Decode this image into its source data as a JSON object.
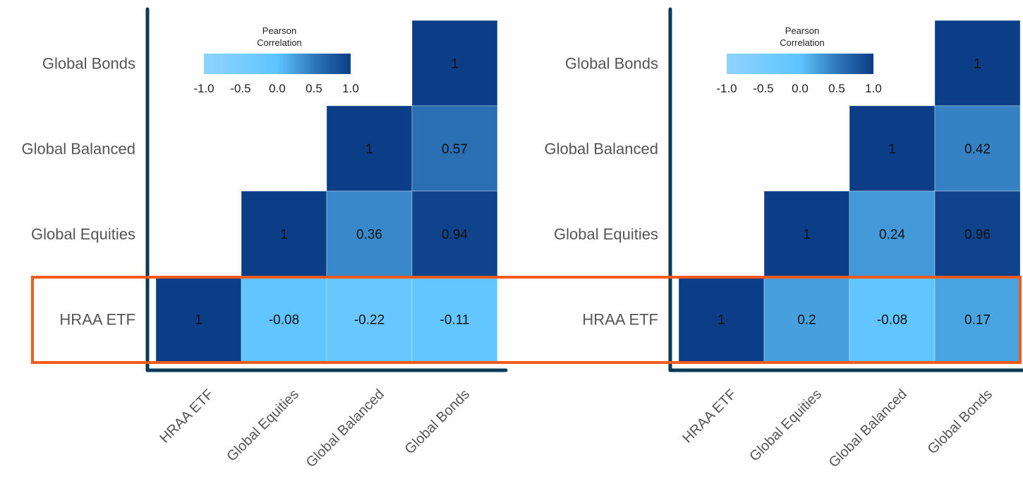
{
  "chart_data": [
    {
      "type": "heatmap",
      "title": "",
      "xlabel": "",
      "ylabel": "",
      "x_categories": [
        "HRAA ETF",
        "Global Equities",
        "Global Balanced",
        "Global Bonds"
      ],
      "y_categories": [
        "Global Bonds",
        "Global Balanced",
        "Global Equities",
        "HRAA ETF"
      ],
      "cells": [
        {
          "row": "Global Bonds",
          "col": "Global Bonds",
          "value": 1
        },
        {
          "row": "Global Balanced",
          "col": "Global Balanced",
          "value": 1
        },
        {
          "row": "Global Balanced",
          "col": "Global Bonds",
          "value": 0.57
        },
        {
          "row": "Global Equities",
          "col": "Global Equities",
          "value": 1
        },
        {
          "row": "Global Equities",
          "col": "Global Balanced",
          "value": 0.36
        },
        {
          "row": "Global Equities",
          "col": "Global Bonds",
          "value": 0.94
        },
        {
          "row": "HRAA ETF",
          "col": "HRAA ETF",
          "value": 1
        },
        {
          "row": "HRAA ETF",
          "col": "Global Equities",
          "value": -0.08
        },
        {
          "row": "HRAA ETF",
          "col": "Global Balanced",
          "value": -0.22
        },
        {
          "row": "HRAA ETF",
          "col": "Global Bonds",
          "value": -0.11
        }
      ],
      "colorbar": {
        "title_line1": "Pearson",
        "title_line2": "Correlation",
        "ticks": [
          "-1.0",
          "-0.5",
          "0.0",
          "0.5",
          "1.0"
        ],
        "range": [
          -1,
          1
        ]
      },
      "highlighted_row": "HRAA ETF",
      "grid": false
    },
    {
      "type": "heatmap",
      "title": "",
      "xlabel": "",
      "ylabel": "",
      "x_categories": [
        "HRAA ETF",
        "Global Equities",
        "Global Balanced",
        "Global Bonds"
      ],
      "y_categories": [
        "Global Bonds",
        "Global Balanced",
        "Global Equities",
        "HRAA ETF"
      ],
      "cells": [
        {
          "row": "Global Bonds",
          "col": "Global Bonds",
          "value": 1
        },
        {
          "row": "Global Balanced",
          "col": "Global Balanced",
          "value": 1
        },
        {
          "row": "Global Balanced",
          "col": "Global Bonds",
          "value": 0.42
        },
        {
          "row": "Global Equities",
          "col": "Global Equities",
          "value": 1
        },
        {
          "row": "Global Equities",
          "col": "Global Balanced",
          "value": 0.24
        },
        {
          "row": "Global Equities",
          "col": "Global Bonds",
          "value": 0.96
        },
        {
          "row": "HRAA ETF",
          "col": "HRAA ETF",
          "value": 1
        },
        {
          "row": "HRAA ETF",
          "col": "Global Equities",
          "value": 0.2
        },
        {
          "row": "HRAA ETF",
          "col": "Global Balanced",
          "value": -0.08
        },
        {
          "row": "HRAA ETF",
          "col": "Global Bonds",
          "value": 0.17
        }
      ],
      "colorbar": {
        "title_line1": "Pearson",
        "title_line2": "Correlation",
        "ticks": [
          "-1.0",
          "-0.5",
          "0.0",
          "0.5",
          "1.0"
        ],
        "range": [
          -1,
          1
        ]
      },
      "highlighted_row": "HRAA ETF",
      "grid": false
    }
  ],
  "colors": {
    "axis": "#0b3a55",
    "highlight": "#f05a1a",
    "cell_text": "#111111",
    "label_text": "#555555",
    "scale_low": "#8fd3ff",
    "scale_mid": "#5ec4ff",
    "scale_high": "#0b3e86"
  }
}
